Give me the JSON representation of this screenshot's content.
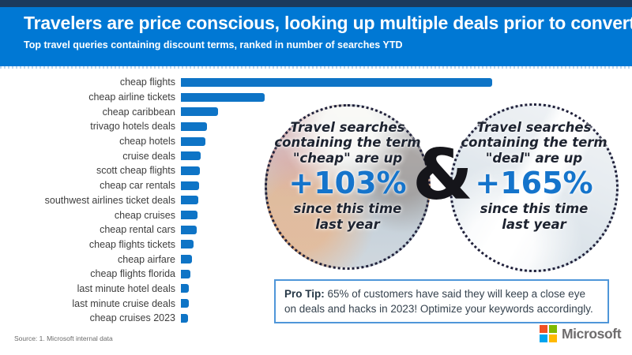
{
  "header": {
    "title": "Travelers are price conscious, looking up multiple deals prior to converting",
    "subtitle": "Top travel queries containing discount terms, ranked in number of searches YTD",
    "background_color": "#0078D4",
    "top_strip_color": "#1B3A5E",
    "text_color": "#FFFFFF"
  },
  "chart_data": {
    "type": "bar",
    "orientation": "horizontal",
    "title": "Top travel queries containing discount terms, ranked in number of searches YTD",
    "categories": [
      "cheap flights",
      "cheap airline tickets",
      "cheap caribbean",
      "trivago hotels deals",
      "cheap hotels",
      "cruise deals",
      "scott cheap flights",
      "cheap car rentals",
      "southwest airlines ticket deals",
      "cheap cruises",
      "cheap rental cars",
      "cheap flights tickets",
      "cheap airfare",
      "cheap flights florida",
      "last minute hotel deals",
      "last minute cruise deals",
      "cheap cruises 2023"
    ],
    "values": [
      100,
      27,
      12,
      8.4,
      7.8,
      6.3,
      6.1,
      5.8,
      5.6,
      5.3,
      5.1,
      4.1,
      3.5,
      3.0,
      2.5,
      2.5,
      2.3
    ],
    "value_note": "relative bar lengths, % of longest bar; no numeric axis shown in image",
    "bar_color": "#0E74C6",
    "grid": false,
    "legend": false,
    "xlabel": "",
    "ylabel": ""
  },
  "callouts": {
    "ampersand": "&",
    "left": {
      "line1": "Travel searches",
      "line2": "containing the term",
      "line3": "\"cheap\" are up",
      "stat": "+103%",
      "line4": "since this time",
      "line5": "last year",
      "stat_color": "#1574CB"
    },
    "right": {
      "line1": "Travel searches",
      "line2": "containing the term",
      "line3": "\"deal\" are up",
      "stat": "+165%",
      "line4": "since this time",
      "line5": "last year",
      "stat_color": "#1574CB"
    }
  },
  "pro_tip": {
    "label": "Pro Tip:",
    "text": "65% of customers have said they will keep a close eye on deals and hacks in 2023! Optimize your keywords accordingly.",
    "border_color": "#4F96D9"
  },
  "footer": {
    "source": "Source: 1. Microsoft internal data",
    "logo_text": "Microsoft",
    "logo_colors": {
      "top_left": "#F25022",
      "top_right": "#7FBA00",
      "bottom_left": "#00A4EF",
      "bottom_right": "#FFB900",
      "wordmark": "#6E6C6D"
    }
  }
}
